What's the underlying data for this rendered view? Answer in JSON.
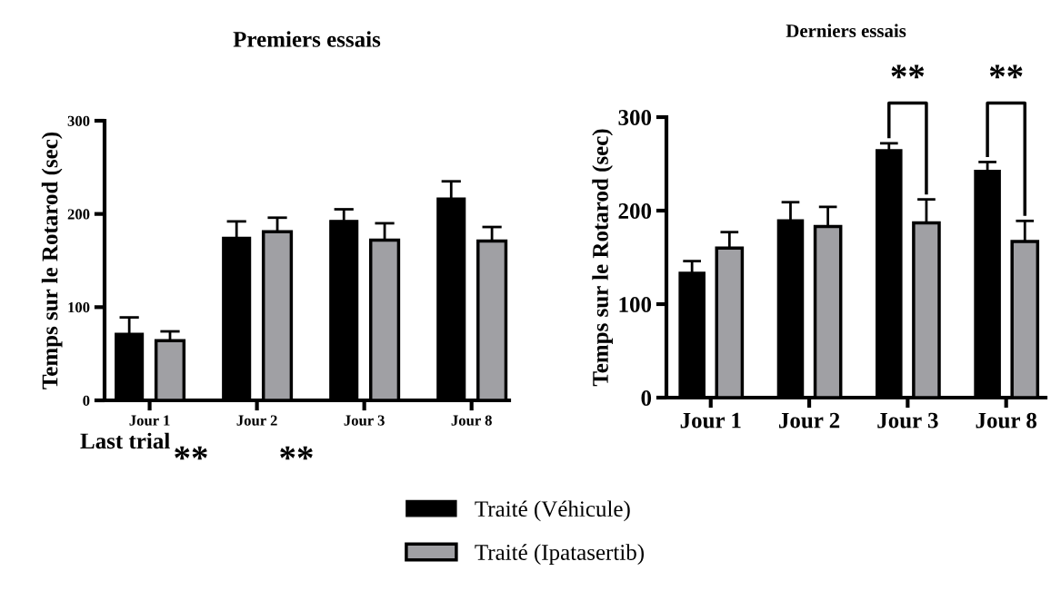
{
  "chart_data": [
    {
      "type": "bar",
      "title": "Premiers essais",
      "ylabel": "Temps sur le Rotarod (sec)",
      "categories": [
        "Jour 1",
        "Jour 2",
        "Jour 3",
        "Jour 8"
      ],
      "ylim": [
        0,
        300
      ],
      "yticks": [
        0,
        100,
        200,
        300
      ],
      "legend": "bottom",
      "grid": false,
      "series": [
        {
          "name": "Traité (Véhicule)",
          "color": "#000000",
          "values": [
            72,
            175,
            193,
            217
          ],
          "errors": [
            [
              72,
              89
            ],
            [
              175,
              192
            ],
            [
              193,
              205
            ],
            [
              217,
              235
            ]
          ]
        },
        {
          "name": "Traité (Ipatasertib)",
          "color": "#a0a0a4",
          "values": [
            64,
            181,
            172,
            171
          ],
          "errors": [
            [
              64,
              74
            ],
            [
              181,
              196
            ],
            [
              172,
              190
            ],
            [
              171,
              186
            ]
          ]
        }
      ],
      "annotations": [
        "Last trial",
        "**",
        "**"
      ]
    },
    {
      "type": "bar",
      "title": "Derniers essais",
      "ylabel": "Temps sur le Rotarod (sec)",
      "categories": [
        "Jour 1",
        "Jour 2",
        "Jour 3",
        "Jour 8"
      ],
      "ylim": [
        0,
        300
      ],
      "yticks": [
        0,
        100,
        200,
        300
      ],
      "grid": false,
      "series": [
        {
          "color": "#000000",
          "values": [
            134,
            190,
            265,
            243
          ],
          "errors": [
            [
              134,
              146
            ],
            [
              190,
              209
            ],
            [
              265,
              272
            ],
            [
              243,
              252
            ]
          ]
        },
        {
          "color": "#a0a0a4",
          "values": [
            160,
            183,
            187,
            167
          ],
          "errors": [
            [
              160,
              177
            ],
            [
              183,
              204
            ],
            [
              187,
              212
            ],
            [
              167,
              189
            ]
          ]
        }
      ],
      "annotations": [
        "**",
        "**"
      ]
    }
  ]
}
